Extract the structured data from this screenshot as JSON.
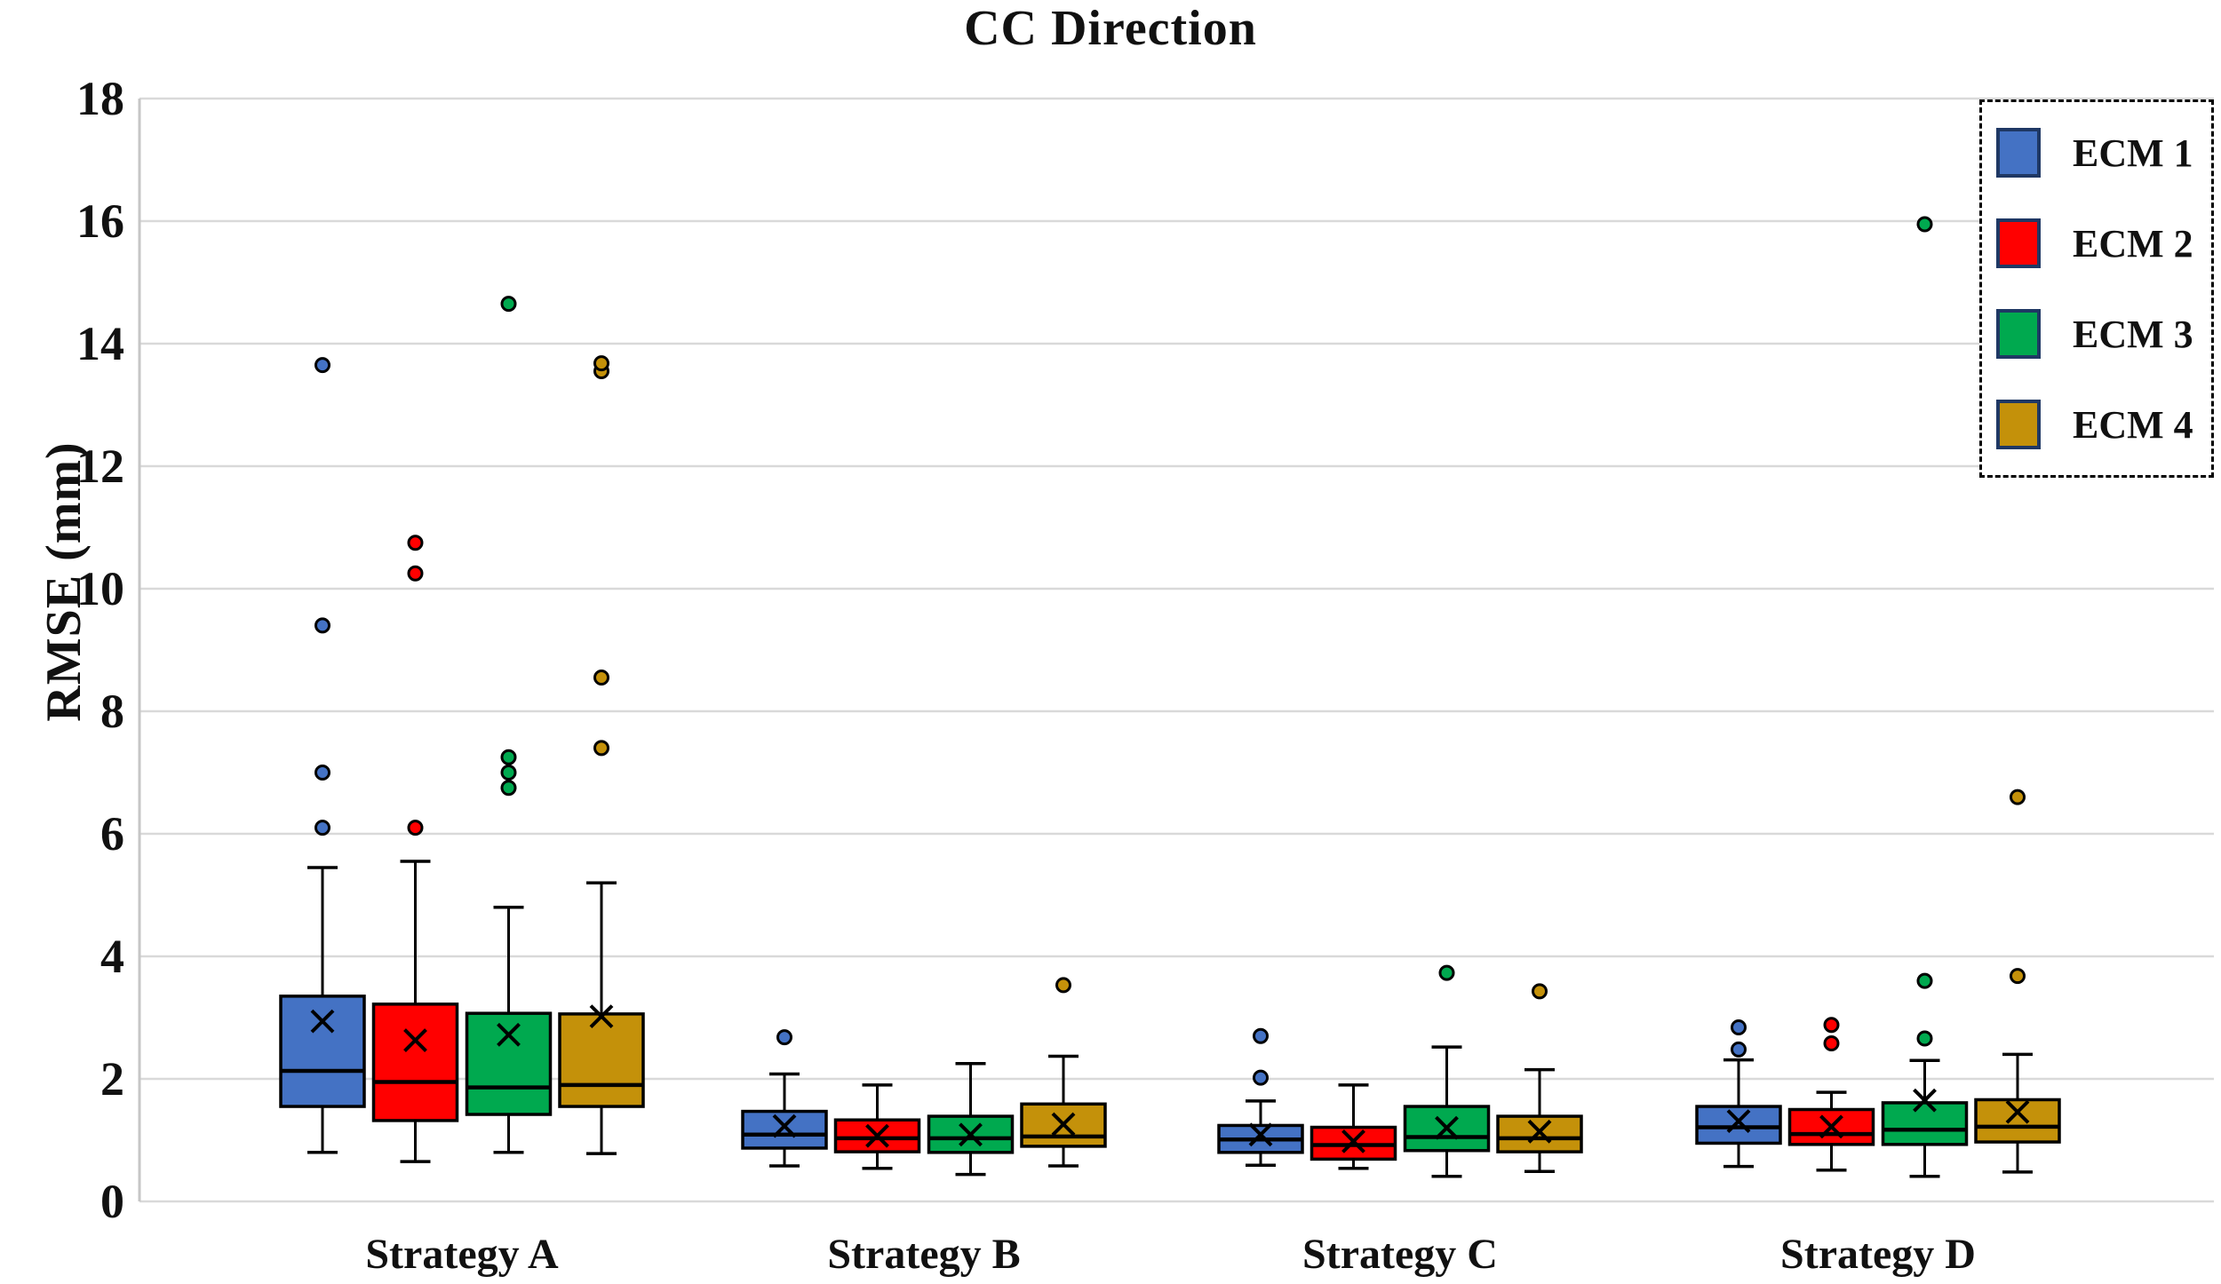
{
  "colors": {
    "gridline": "#D9D9D9",
    "axis_line": "#C6C6C6",
    "box_border": "#000000",
    "mean_marker": "#000000",
    "legend_swatch_border": "#1F3864"
  },
  "chart_data": {
    "type": "boxplot",
    "title": "CC Direction",
    "ylabel": "RMSE (mm)",
    "ylim": [
      0,
      18
    ],
    "yticks": [
      0,
      2,
      4,
      6,
      8,
      10,
      12,
      14,
      16,
      18
    ],
    "grid": "horizontal",
    "legend_position": "top-right dashed box",
    "categories": [
      "Strategy A",
      "Strategy B",
      "Strategy C",
      "Strategy D"
    ],
    "series": [
      {
        "name": "ECM 1",
        "color": "#4472C4",
        "boxes": [
          {
            "category": "Strategy A",
            "whisker_low": 0.8,
            "q1": 1.55,
            "median": 2.13,
            "q3": 3.35,
            "whisker_high": 5.45,
            "mean": 2.94,
            "outliers": [
              6.1,
              7.0,
              9.4,
              13.65
            ]
          },
          {
            "category": "Strategy B",
            "whisker_low": 0.58,
            "q1": 0.87,
            "median": 1.09,
            "q3": 1.47,
            "whisker_high": 2.08,
            "mean": 1.23,
            "outliers": [
              2.68
            ]
          },
          {
            "category": "Strategy C",
            "whisker_low": 0.59,
            "q1": 0.8,
            "median": 1.01,
            "q3": 1.24,
            "whisker_high": 1.64,
            "mean": 1.09,
            "outliers": [
              2.02,
              2.7
            ]
          },
          {
            "category": "Strategy D",
            "whisker_low": 0.57,
            "q1": 0.95,
            "median": 1.21,
            "q3": 1.55,
            "whisker_high": 2.31,
            "mean": 1.31,
            "outliers": [
              2.48,
              2.84
            ]
          }
        ]
      },
      {
        "name": "ECM 2",
        "color": "#FF0000",
        "boxes": [
          {
            "category": "Strategy A",
            "whisker_low": 0.65,
            "q1": 1.32,
            "median": 1.95,
            "q3": 3.22,
            "whisker_high": 5.55,
            "mean": 2.63,
            "outliers": [
              6.1,
              10.25,
              10.75
            ]
          },
          {
            "category": "Strategy B",
            "whisker_low": 0.54,
            "q1": 0.81,
            "median": 1.03,
            "q3": 1.33,
            "whisker_high": 1.9,
            "mean": 1.07,
            "outliers": []
          },
          {
            "category": "Strategy C",
            "whisker_low": 0.54,
            "q1": 0.69,
            "median": 0.92,
            "q3": 1.21,
            "whisker_high": 1.9,
            "mean": 0.98,
            "outliers": []
          },
          {
            "category": "Strategy D",
            "whisker_low": 0.51,
            "q1": 0.93,
            "median": 1.1,
            "q3": 1.5,
            "whisker_high": 1.78,
            "mean": 1.22,
            "outliers": [
              2.58,
              2.88
            ]
          }
        ]
      },
      {
        "name": "ECM 3",
        "color": "#00A94F",
        "boxes": [
          {
            "category": "Strategy A",
            "whisker_low": 0.8,
            "q1": 1.42,
            "median": 1.86,
            "q3": 3.07,
            "whisker_high": 4.8,
            "mean": 2.72,
            "outliers": [
              6.75,
              7.0,
              7.25,
              14.65
            ]
          },
          {
            "category": "Strategy B",
            "whisker_low": 0.44,
            "q1": 0.8,
            "median": 1.03,
            "q3": 1.39,
            "whisker_high": 2.25,
            "mean": 1.09,
            "outliers": []
          },
          {
            "category": "Strategy C",
            "whisker_low": 0.41,
            "q1": 0.83,
            "median": 1.05,
            "q3": 1.55,
            "whisker_high": 2.52,
            "mean": 1.2,
            "outliers": [
              3.73
            ]
          },
          {
            "category": "Strategy D",
            "whisker_low": 0.41,
            "q1": 0.93,
            "median": 1.17,
            "q3": 1.61,
            "whisker_high": 2.3,
            "mean": 1.65,
            "outliers": [
              2.66,
              3.6,
              15.95
            ]
          }
        ]
      },
      {
        "name": "ECM 4",
        "color": "#C4910A",
        "boxes": [
          {
            "category": "Strategy A",
            "whisker_low": 0.78,
            "q1": 1.55,
            "median": 1.9,
            "q3": 3.06,
            "whisker_high": 5.2,
            "mean": 3.02,
            "outliers": [
              7.4,
              8.55,
              13.55,
              13.68
            ]
          },
          {
            "category": "Strategy B",
            "whisker_low": 0.58,
            "q1": 0.9,
            "median": 1.06,
            "q3": 1.59,
            "whisker_high": 2.37,
            "mean": 1.26,
            "outliers": [
              3.53
            ]
          },
          {
            "category": "Strategy C",
            "whisker_low": 0.49,
            "q1": 0.81,
            "median": 1.03,
            "q3": 1.39,
            "whisker_high": 2.15,
            "mean": 1.14,
            "outliers": [
              3.43
            ]
          },
          {
            "category": "Strategy D",
            "whisker_low": 0.48,
            "q1": 0.97,
            "median": 1.22,
            "q3": 1.66,
            "whisker_high": 2.4,
            "mean": 1.46,
            "outliers": [
              3.68,
              6.6
            ]
          }
        ]
      }
    ]
  }
}
